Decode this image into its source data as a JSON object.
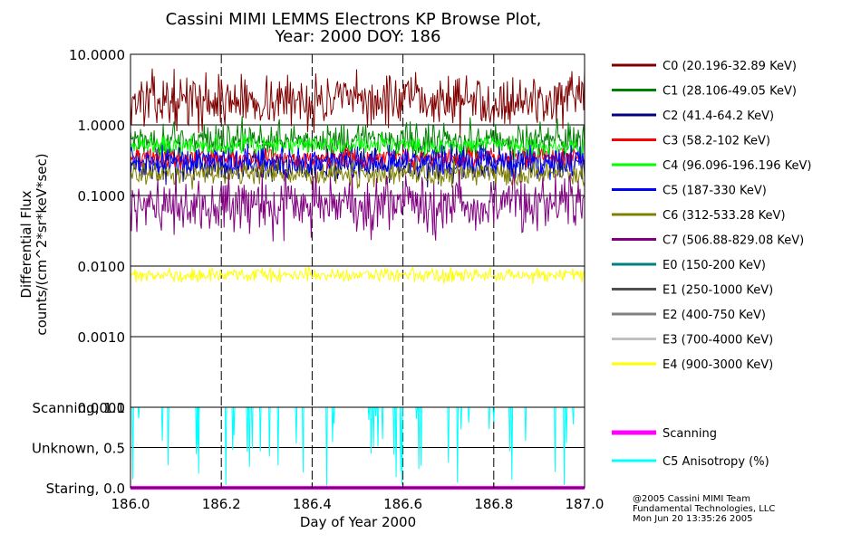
{
  "chart_data": {
    "type": "line",
    "title": [
      "Cassini MIMI LEMMS Electrons KP Browse Plot,",
      "Year: 2000 DOY: 186"
    ],
    "xlabel": "Day of Year 2000",
    "ylabel": [
      "Differential Flux",
      "counts/(cm^2*sr*keV*sec)"
    ],
    "x_ticks": [
      "186.0",
      "186.2",
      "186.4",
      "186.6",
      "186.8",
      "187.0"
    ],
    "xlim": [
      186.0,
      187.0
    ],
    "upper_panel": {
      "scale": "log",
      "ylim": [
        0.0001,
        10.0
      ],
      "y_ticks": [
        "10.0000",
        "1.0000",
        "0.1000",
        "0.0100",
        "0.0010",
        "0.0001"
      ],
      "series": [
        {
          "name": "C0 (20.196-32.89 KeV)",
          "color": "#800000",
          "level": 2.2,
          "spread": 0.18
        },
        {
          "name": "C1 (28.106-49.05 KeV)",
          "color": "#008000",
          "level": 0.62,
          "spread": 0.12
        },
        {
          "name": "C2 (41.4-64.2 KeV)",
          "color": "#000080",
          "level": 0.28,
          "spread": 0.12
        },
        {
          "name": "C3 (58.2-102 KeV)",
          "color": "#ff0000",
          "level": 0.34,
          "spread": 0.07
        },
        {
          "name": "C4 (96.096-196.196 KeV)",
          "color": "#00ff00",
          "level": 0.52,
          "spread": 0.07
        },
        {
          "name": "C5 (187-330 KeV)",
          "color": "#0000ff",
          "level": 0.3,
          "spread": 0.1
        },
        {
          "name": "C6 (312-533.28 KeV)",
          "color": "#808000",
          "level": 0.2,
          "spread": 0.08
        },
        {
          "name": "C7 (506.88-829.08 KeV)",
          "color": "#800080",
          "level": 0.075,
          "spread": 0.2
        },
        {
          "name": "E0 (150-200 KeV)",
          "color": "#008080",
          "level": null
        },
        {
          "name": "E1 (250-1000 KeV)",
          "color": "#505050",
          "level": null
        },
        {
          "name": "E2 (400-750 KeV)",
          "color": "#808080",
          "level": null
        },
        {
          "name": "E3 (700-4000 KeV)",
          "color": "#c0c0c0",
          "level": null
        },
        {
          "name": "E4 (900-3000 KeV)",
          "color": "#ffff00",
          "level": 0.0075,
          "spread": 0.05
        }
      ]
    },
    "lower_panel": {
      "ylim": [
        0.0,
        1.0
      ],
      "y_ticks": [
        "Scanning, 1.0",
        "Unknown, 0.5",
        "Staring, 0.0"
      ],
      "series": [
        {
          "name": "Scanning",
          "color": "#ff00ff",
          "value": 0.0
        },
        {
          "name": "C5 Anisotropy (%)",
          "color": "#00ffff",
          "value": 1.0,
          "dips_x": [
            186.005,
            186.018,
            186.07,
            186.083,
            186.145,
            186.148,
            186.15,
            186.21,
            186.225,
            186.228,
            186.257,
            186.262,
            186.268,
            186.286,
            186.306,
            186.325,
            186.365,
            186.38,
            186.432,
            186.445,
            186.448,
            186.525,
            186.53,
            186.535,
            186.54,
            186.545,
            186.555,
            186.58,
            186.585,
            186.595,
            186.598,
            186.63,
            186.635,
            186.64,
            186.7,
            186.72,
            186.728,
            186.745,
            186.79,
            186.8,
            186.835,
            186.84,
            186.87,
            186.935,
            186.955,
            186.96,
            186.975
          ]
        }
      ]
    },
    "grid": true,
    "legend_position": "right"
  },
  "credits": [
    "@2005 Cassini MIMI Team",
    "Fundamental Technologies, LLC",
    "Mon Jun 20 13:35:26 2005"
  ]
}
